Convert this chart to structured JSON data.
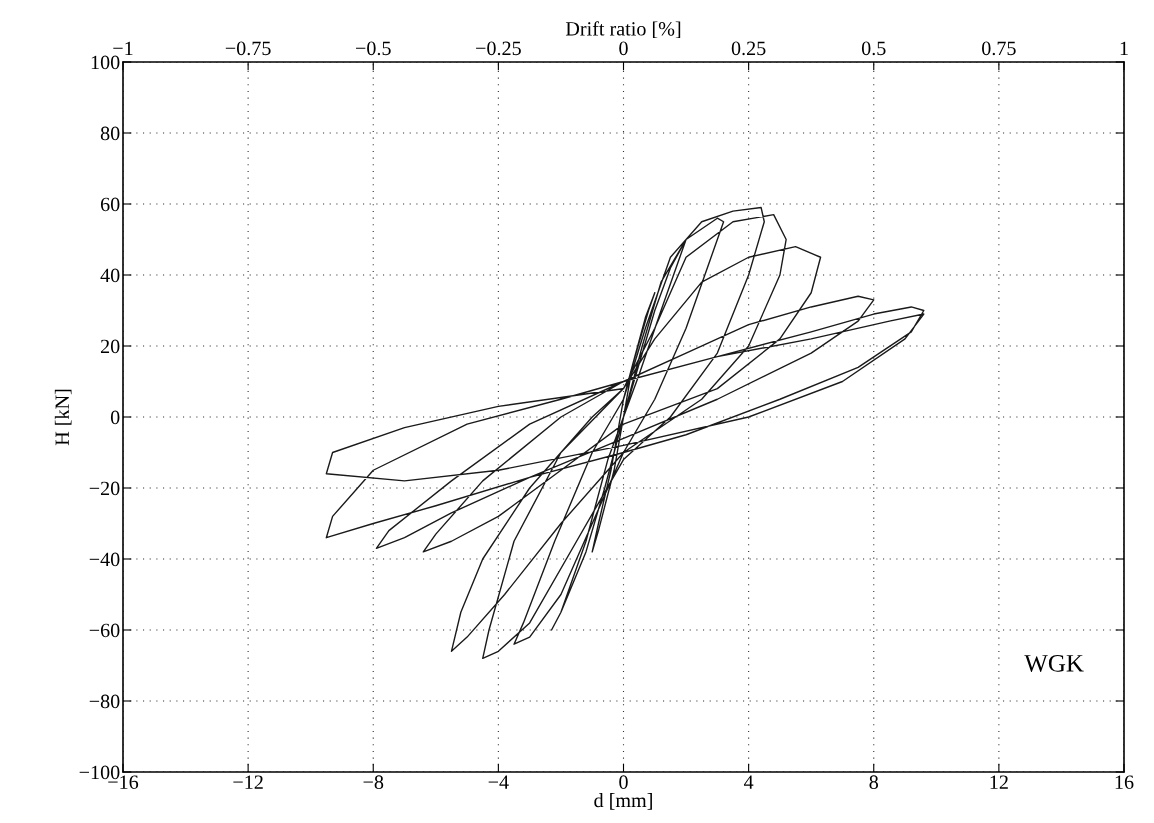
{
  "chart_data": {
    "type": "line",
    "xlabel": "d [mm]",
    "ylabel": "H [kN]",
    "x2label": "Drift ratio [%]",
    "xlim": [
      -16,
      16
    ],
    "xticks": [
      -16,
      -12,
      -8,
      -4,
      0,
      4,
      8,
      12,
      16
    ],
    "ylim": [
      -100,
      100
    ],
    "yticks": [
      -100,
      -80,
      -60,
      -40,
      -20,
      0,
      20,
      40,
      60,
      80,
      100
    ],
    "x2lim": [
      -1,
      1
    ],
    "x2ticks": [
      -1,
      -0.75,
      -0.5,
      -0.25,
      0,
      0.25,
      0.5,
      0.75,
      1
    ],
    "grid": true,
    "line_style": "solid",
    "marker": "none",
    "annotations": [
      "WGK"
    ],
    "series": [
      {
        "color": "#1a1a1a",
        "x": [
          0,
          0.3,
          0.7,
          1.0,
          0.8,
          0.3,
          0,
          -0.4,
          -0.8,
          -1.0,
          -0.8,
          -0.3,
          0,
          0.5,
          1.0,
          1.5,
          2.0,
          1.8,
          1.2,
          0.5,
          0,
          -0.6,
          -1.2,
          -2.0,
          -2.3,
          -2.0,
          -1.2,
          -0.5,
          0,
          0.6,
          1.2,
          2.0,
          3.0,
          3.2,
          2.8,
          2.0,
          1.0,
          0,
          -1.0,
          -2.0,
          -3.0,
          -3.5,
          -3.2,
          -2.2,
          -1.0,
          0,
          0.7,
          1.5,
          2.5,
          3.5,
          4.4,
          4.5,
          4.0,
          3.0,
          1.5,
          0,
          -1.5,
          -3.0,
          -4.0,
          -4.5,
          -4.3,
          -3.5,
          -2.0,
          0,
          1.0,
          2.0,
          3.5,
          4.8,
          5.2,
          5.0,
          4.0,
          2.5,
          0,
          -2,
          -3.8,
          -5.0,
          -5.5,
          -5.2,
          -4.5,
          -3,
          -1,
          0,
          1.0,
          2.5,
          4.0,
          5.5,
          6.3,
          6.0,
          5.0,
          3.0,
          0,
          -2.0,
          -4.0,
          -5.5,
          -6.4,
          -6.0,
          -4.5,
          -2.0,
          0,
          2.0,
          4.0,
          6.0,
          7.5,
          8.0,
          7.5,
          6.0,
          3.0,
          0,
          -3.0,
          -5.5,
          -7.0,
          -7.9,
          -7.5,
          -5.5,
          -3.0,
          0,
          3.0,
          6.0,
          8.0,
          9.2,
          9.6,
          9.2,
          7.5,
          5.0,
          2.0,
          0,
          -3,
          -6,
          -8,
          -9.5,
          -9.3,
          -8,
          -5,
          -2,
          0,
          3,
          6,
          8.5,
          9.6,
          9,
          7,
          4,
          0,
          -4,
          -7,
          -9.5,
          -9.3,
          -7,
          -4,
          0
        ],
        "values": [
          0,
          15,
          28,
          35,
          30,
          15,
          5,
          -15,
          -30,
          -38,
          -32,
          -15,
          0,
          15,
          30,
          42,
          50,
          45,
          30,
          12,
          0,
          -20,
          -38,
          -55,
          -60,
          -55,
          -35,
          -12,
          0,
          20,
          38,
          50,
          56,
          55,
          45,
          25,
          5,
          -10,
          -30,
          -50,
          -62,
          -64,
          -58,
          -35,
          -10,
          5,
          25,
          45,
          55,
          58,
          59,
          55,
          40,
          18,
          0,
          -12,
          -35,
          -58,
          -66,
          -68,
          -60,
          -35,
          -10,
          8,
          25,
          45,
          55,
          57,
          50,
          40,
          20,
          5,
          -10,
          -30,
          -50,
          -62,
          -66,
          -55,
          -40,
          -20,
          0,
          8,
          22,
          38,
          45,
          48,
          45,
          35,
          22,
          8,
          -2,
          -15,
          -28,
          -35,
          -38,
          -33,
          -18,
          0,
          10,
          18,
          26,
          31,
          34,
          33,
          27,
          18,
          5,
          -6,
          -17,
          -27,
          -34,
          -37,
          -32,
          -18,
          -2,
          10,
          17,
          24,
          29,
          31,
          30,
          24,
          14,
          5,
          -5,
          -10,
          -17,
          -25,
          -30,
          -34,
          -28,
          -15,
          -2,
          5,
          10,
          17,
          22,
          27,
          29,
          22,
          10,
          0,
          -8,
          -15,
          -18,
          -16,
          -10,
          -3,
          3,
          8
        ]
      }
    ]
  }
}
